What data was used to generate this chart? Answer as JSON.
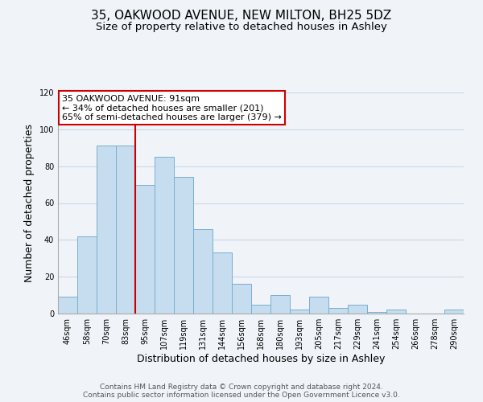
{
  "title": "35, OAKWOOD AVENUE, NEW MILTON, BH25 5DZ",
  "subtitle": "Size of property relative to detached houses in Ashley",
  "xlabel": "Distribution of detached houses by size in Ashley",
  "ylabel": "Number of detached properties",
  "bar_labels": [
    "46sqm",
    "58sqm",
    "70sqm",
    "83sqm",
    "95sqm",
    "107sqm",
    "119sqm",
    "131sqm",
    "144sqm",
    "156sqm",
    "168sqm",
    "180sqm",
    "193sqm",
    "205sqm",
    "217sqm",
    "229sqm",
    "241sqm",
    "254sqm",
    "266sqm",
    "278sqm",
    "290sqm"
  ],
  "bar_values": [
    9,
    42,
    91,
    91,
    70,
    85,
    74,
    46,
    33,
    16,
    5,
    10,
    2,
    9,
    3,
    5,
    1,
    2,
    0,
    0,
    2
  ],
  "bar_color": "#c5ddef",
  "bar_edge_color": "#7aaecf",
  "ylim": [
    0,
    120
  ],
  "yticks": [
    0,
    20,
    40,
    60,
    80,
    100,
    120
  ],
  "vline_index": 4,
  "vline_color": "#cc0000",
  "annotation_title": "35 OAKWOOD AVENUE: 91sqm",
  "annotation_line1": "← 34% of detached houses are smaller (201)",
  "annotation_line2": "65% of semi-detached houses are larger (379) →",
  "annotation_box_color": "#ffffff",
  "annotation_box_edge": "#cc0000",
  "footer1": "Contains HM Land Registry data © Crown copyright and database right 2024.",
  "footer2": "Contains public sector information licensed under the Open Government Licence v3.0.",
  "title_fontsize": 11,
  "subtitle_fontsize": 9.5,
  "xlabel_fontsize": 9,
  "ylabel_fontsize": 9,
  "tick_fontsize": 7,
  "annot_fontsize": 8,
  "footer_fontsize": 6.5,
  "background_color": "#f0f4f8"
}
